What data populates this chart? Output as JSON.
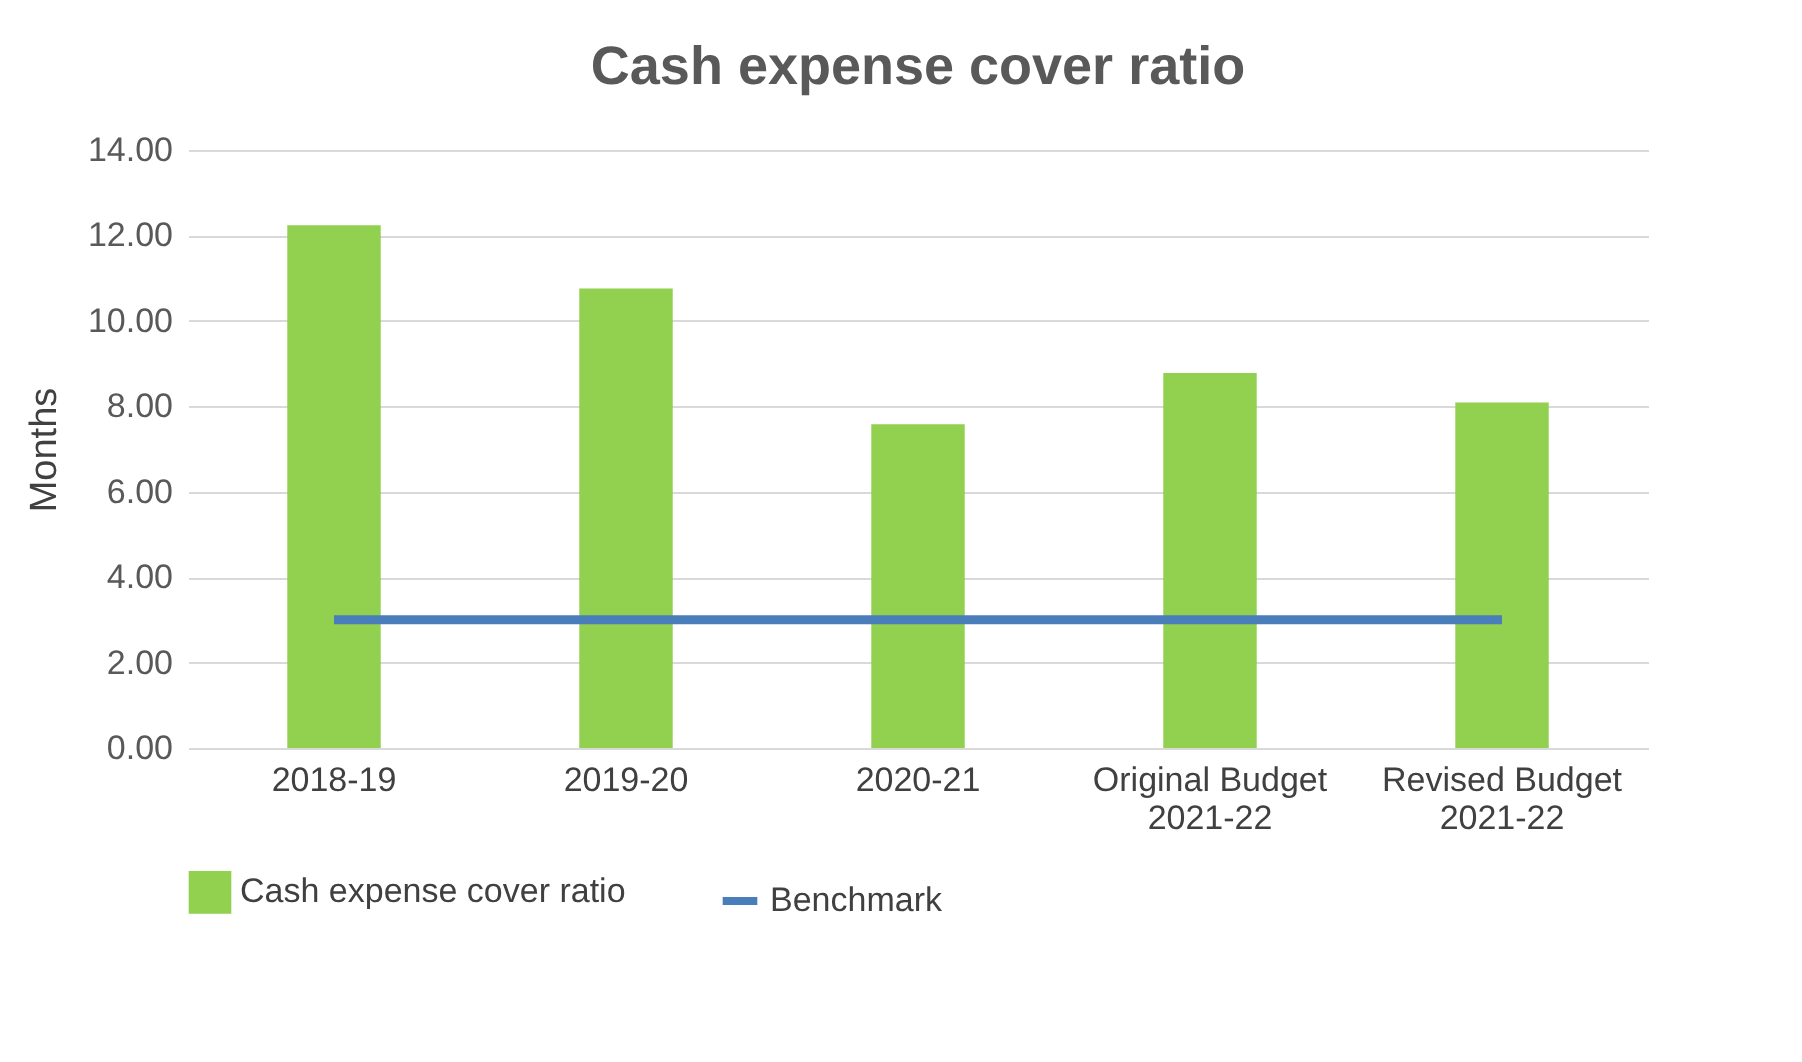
{
  "chart_data": {
    "type": "bar",
    "title": "Cash expense cover ratio",
    "ylabel": "Months",
    "categories": [
      "2018-19",
      "2019-20",
      "2020-21",
      "Original Budget 2021-22",
      "Revised Budget 2021-22"
    ],
    "series": [
      {
        "name": "Cash expense cover ratio",
        "type": "bar",
        "color": "#92d050",
        "values": [
          12.24,
          10.76,
          7.58,
          8.78,
          8.09
        ]
      },
      {
        "name": "Benchmark",
        "type": "line",
        "color": "#4a7ebb",
        "values": [
          3,
          3,
          3,
          3,
          3
        ]
      }
    ],
    "ylim": [
      0,
      14
    ],
    "yticks": [
      {
        "value": 0,
        "label": "0.00"
      },
      {
        "value": 2,
        "label": "2.00"
      },
      {
        "value": 4,
        "label": "4.00"
      },
      {
        "value": 6,
        "label": "6.00"
      },
      {
        "value": 8,
        "label": "8.00"
      },
      {
        "value": 10,
        "label": "10.00"
      },
      {
        "value": 12,
        "label": "12.00"
      },
      {
        "value": 14,
        "label": "14.00"
      }
    ],
    "grid": "y",
    "legend": "bottom"
  }
}
